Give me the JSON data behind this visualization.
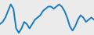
{
  "x": [
    0,
    1,
    2,
    3,
    4,
    5,
    6,
    7,
    8,
    9,
    10,
    11,
    12,
    13,
    14,
    15,
    16,
    17,
    18,
    19,
    20,
    21,
    22,
    23,
    24,
    25,
    26,
    27,
    28,
    29,
    30,
    31,
    32,
    33,
    34,
    35
  ],
  "y": [
    4,
    5,
    7,
    10,
    13,
    11,
    2,
    0,
    2,
    5,
    4,
    2,
    4,
    6,
    7,
    8,
    10,
    11,
    12,
    12,
    11,
    12,
    13,
    12,
    10,
    7,
    3,
    1,
    3,
    6,
    8,
    7,
    5,
    6,
    7,
    6
  ],
  "line_color": "#1a7abf",
  "linewidth": 1.4,
  "background_color": "#ebebeb",
  "ylim": [
    -1,
    15
  ],
  "xlim": [
    0,
    35
  ]
}
